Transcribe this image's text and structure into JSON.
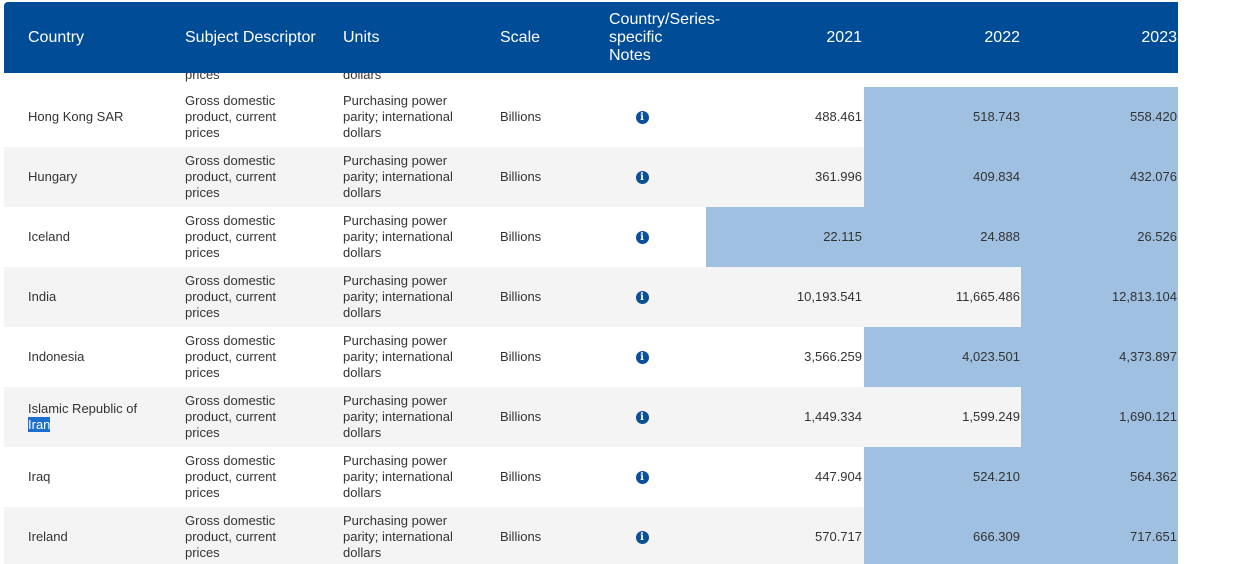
{
  "header": {
    "country": "Country",
    "subject": "Subject Descriptor",
    "units": "Units",
    "scale": "Scale",
    "notes_line1": "Country/Series-",
    "notes_line2": "specific",
    "notes_line3": "Notes",
    "y2021": "2021",
    "y2022": "2022",
    "y2023": "2023"
  },
  "peek": {
    "subject": "prices",
    "units": "dollars"
  },
  "rows": [
    {
      "country": "Hong Kong SAR",
      "country_hl": "",
      "subject": "Gross domestic product, current prices",
      "units": "Purchasing power parity; international dollars",
      "scale": "Billions",
      "icon": "info-icon",
      "y2021": "488.461",
      "y2022": "518.743",
      "y2023": "558.420"
    },
    {
      "country": "Hungary",
      "country_hl": "",
      "subject": "Gross domestic product, current prices",
      "units": "Purchasing power parity; international dollars",
      "scale": "Billions",
      "icon": "info-icon",
      "y2021": "361.996",
      "y2022": "409.834",
      "y2023": "432.076"
    },
    {
      "country": "Iceland",
      "country_hl": "",
      "subject": "Gross domestic product, current prices",
      "units": "Purchasing power parity; international dollars",
      "scale": "Billions",
      "icon": "info-icon",
      "y2021": "22.115",
      "y2022": "24.888",
      "y2023": "26.526"
    },
    {
      "country": "India",
      "country_hl": "",
      "subject": "Gross domestic product, current prices",
      "units": "Purchasing power parity; international dollars",
      "scale": "Billions",
      "icon": "info-icon",
      "y2021": "10,193.541",
      "y2022": "11,665.486",
      "y2023": "12,813.104"
    },
    {
      "country": "Indonesia",
      "country_hl": "",
      "subject": "Gross domestic product, current prices",
      "units": "Purchasing power parity; international dollars",
      "scale": "Billions",
      "icon": "info-icon",
      "y2021": "3,566.259",
      "y2022": "4,023.501",
      "y2023": "4,373.897"
    },
    {
      "country": "Islamic Republic of ",
      "country_hl": "Iran",
      "subject": "Gross domestic product, current prices",
      "units": "Purchasing power parity; international dollars",
      "scale": "Billions",
      "icon": "info-icon",
      "y2021": "1,449.334",
      "y2022": "1,599.249",
      "y2023": "1,690.121"
    },
    {
      "country": "Iraq",
      "country_hl": "",
      "subject": "Gross domestic product, current prices",
      "units": "Purchasing power parity; international dollars",
      "scale": "Billions",
      "icon": "info-icon",
      "y2021": "447.904",
      "y2022": "524.210",
      "y2023": "564.362"
    },
    {
      "country": "Ireland",
      "country_hl": "",
      "subject": "Gross domestic product, current prices",
      "units": "Purchasing power parity; international dollars",
      "scale": "Billions",
      "icon": "info-icon",
      "y2021": "570.717",
      "y2022": "666.309",
      "y2023": "717.651"
    }
  ],
  "colors": {
    "header_bg": "#004c97",
    "selection": "#9fc0e0",
    "text_highlight": "#1b6fd1"
  }
}
